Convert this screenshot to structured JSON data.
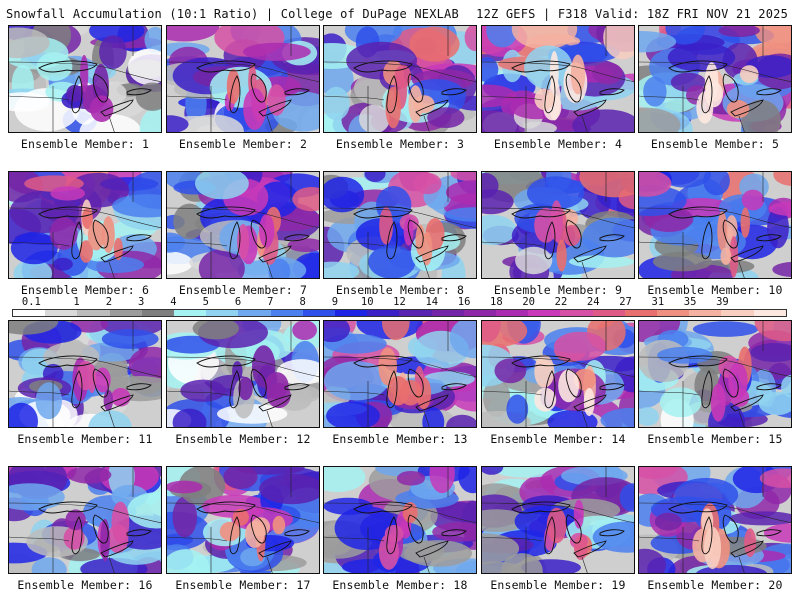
{
  "header": {
    "title_left": "Snowfall Accumulation (10:1 Ratio) | College of DuPage NEXLAB",
    "title_right": "12Z GEFS | F318 Valid: 18Z FRI NOV 21 2025"
  },
  "colorbar": {
    "ticks": [
      "0.1",
      "1",
      "2",
      "3",
      "4",
      "5",
      "6",
      "7",
      "8",
      "9",
      "10",
      "12",
      "14",
      "16",
      "18",
      "20",
      "22",
      "24",
      "27",
      "31",
      "35",
      "39"
    ],
    "colors": [
      "#ffffff",
      "#d9d9d9",
      "#bcbcbc",
      "#9c9c9c",
      "#7f7f7f",
      "#a4f2f2",
      "#8fd3f0",
      "#6fa8ef",
      "#4b80ee",
      "#2f50ea",
      "#1e24e6",
      "#3b20c8",
      "#5a22b0",
      "#7424a6",
      "#8f28a8",
      "#ab2cb0",
      "#c838b8",
      "#d650a6",
      "#df5a86",
      "#e96e6e",
      "#f09080",
      "#f4b0a0",
      "#f8cec0",
      "#fce8e0"
    ]
  },
  "members": [
    {
      "label": "Ensemble Member: 1",
      "intensity": 0.3
    },
    {
      "label": "Ensemble Member: 2",
      "intensity": 0.45
    },
    {
      "label": "Ensemble Member: 3",
      "intensity": 0.55
    },
    {
      "label": "Ensemble Member: 4",
      "intensity": 0.7
    },
    {
      "label": "Ensemble Member: 5",
      "intensity": 0.65
    },
    {
      "label": "Ensemble Member: 6",
      "intensity": 0.6
    },
    {
      "label": "Ensemble Member: 7",
      "intensity": 0.5
    },
    {
      "label": "Ensemble Member: 8",
      "intensity": 0.5
    },
    {
      "label": "Ensemble Member: 9",
      "intensity": 0.55
    },
    {
      "label": "Ensemble Member: 10",
      "intensity": 0.6
    },
    {
      "label": "Ensemble Member: 11",
      "intensity": 0.4
    },
    {
      "label": "Ensemble Member: 12",
      "intensity": 0.3
    },
    {
      "label": "Ensemble Member: 13",
      "intensity": 0.6
    },
    {
      "label": "Ensemble Member: 14",
      "intensity": 0.65
    },
    {
      "label": "Ensemble Member: 15",
      "intensity": 0.45
    },
    {
      "label": "Ensemble Member: 16",
      "intensity": 0.4
    },
    {
      "label": "Ensemble Member: 17",
      "intensity": 0.55
    },
    {
      "label": "Ensemble Member: 18",
      "intensity": 0.45
    },
    {
      "label": "Ensemble Member: 19",
      "intensity": 0.5
    },
    {
      "label": "Ensemble Member: 20",
      "intensity": 0.6
    }
  ]
}
